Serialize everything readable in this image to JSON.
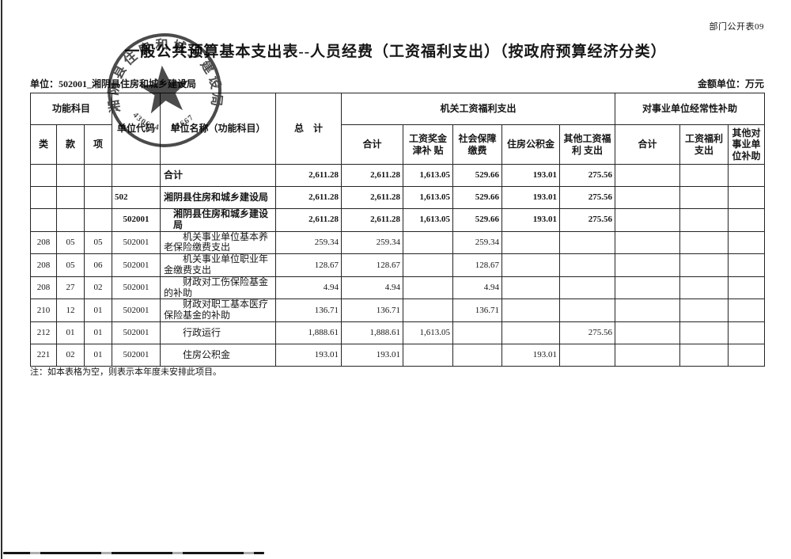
{
  "page": {
    "doc_label": "部门公开表09",
    "title": "一般公共预算基本支出表--人员经费（工资福利支出）（按政府预算经济分类）",
    "unit_line": "单位：502001_湘阴县住房和城乡建设局",
    "amount_unit": "金额单位：万元",
    "note": "注：如本表格为空，则表示本年度未安排此项目。"
  },
  "seal": {
    "ring_text": "湘阴县住房和城乡建设局",
    "code_text": "430624　 13667"
  },
  "table": {
    "header": {
      "func_group": "功能科目",
      "cls": "类",
      "sec": "款",
      "item": "项",
      "unit_code": "单位代码",
      "unit_name": "单位名称（功能科目）",
      "total": "总　计",
      "group1": "机关工资福利支出",
      "g1_cols": [
        "合计",
        "工资奖金津补\n贴",
        "社会保障缴费",
        "住房公积金",
        "其他工资福利\n支出"
      ],
      "group2": "对事业单位经常性补助",
      "g2_cols": [
        "合计",
        "工资福利支出",
        "其他对事业单\n位补助"
      ]
    },
    "rows": [
      {
        "cls": "",
        "sec": "",
        "item": "",
        "code": "",
        "name": "合计",
        "name_class": "lv1",
        "code_class": "",
        "bold": true,
        "total": "2,611.28",
        "g1": [
          "2,611.28",
          "1,613.05",
          "529.66",
          "193.01",
          "275.56"
        ],
        "g2": [
          "",
          "",
          ""
        ]
      },
      {
        "cls": "",
        "sec": "",
        "item": "",
        "code": "502",
        "name": "湘阴县住房和城乡建设局",
        "name_class": "lv1",
        "code_class": "left",
        "bold": true,
        "total": "2,611.28",
        "g1": [
          "2,611.28",
          "1,613.05",
          "529.66",
          "193.01",
          "275.56"
        ],
        "g2": [
          "",
          "",
          ""
        ]
      },
      {
        "cls": "",
        "sec": "",
        "item": "",
        "code": "502001",
        "name": "湘阴县住房和城乡建设局",
        "name_class": "lv2",
        "code_class": "",
        "bold": true,
        "total": "2,611.28",
        "g1": [
          "2,611.28",
          "1,613.05",
          "529.66",
          "193.01",
          "275.56"
        ],
        "g2": [
          "",
          "",
          ""
        ]
      },
      {
        "cls": "208",
        "sec": "05",
        "item": "05",
        "code": "502001",
        "name": "机关事业单位基本养老保险缴费支出",
        "name_class": "item",
        "code_class": "",
        "bold": false,
        "total": "259.34",
        "g1": [
          "259.34",
          "",
          "259.34",
          "",
          ""
        ],
        "g2": [
          "",
          "",
          ""
        ]
      },
      {
        "cls": "208",
        "sec": "05",
        "item": "06",
        "code": "502001",
        "name": "机关事业单位职业年金缴费支出",
        "name_class": "item",
        "code_class": "",
        "bold": false,
        "total": "128.67",
        "g1": [
          "128.67",
          "",
          "128.67",
          "",
          ""
        ],
        "g2": [
          "",
          "",
          ""
        ]
      },
      {
        "cls": "208",
        "sec": "27",
        "item": "02",
        "code": "502001",
        "name": "财政对工伤保险基金的补助",
        "name_class": "item",
        "code_class": "",
        "bold": false,
        "total": "4.94",
        "g1": [
          "4.94",
          "",
          "4.94",
          "",
          ""
        ],
        "g2": [
          "",
          "",
          ""
        ]
      },
      {
        "cls": "210",
        "sec": "12",
        "item": "01",
        "code": "502001",
        "name": "财政对职工基本医疗保险基金的补助",
        "name_class": "item",
        "code_class": "",
        "bold": false,
        "total": "136.71",
        "g1": [
          "136.71",
          "",
          "136.71",
          "",
          ""
        ],
        "g2": [
          "",
          "",
          ""
        ]
      },
      {
        "cls": "212",
        "sec": "01",
        "item": "01",
        "code": "502001",
        "name": "行政运行",
        "name_class": "item",
        "code_class": "",
        "bold": false,
        "total": "1,888.61",
        "g1": [
          "1,888.61",
          "1,613.05",
          "",
          "",
          "275.56"
        ],
        "g2": [
          "",
          "",
          ""
        ]
      },
      {
        "cls": "221",
        "sec": "02",
        "item": "01",
        "code": "502001",
        "name": "住房公积金",
        "name_class": "item",
        "code_class": "",
        "bold": false,
        "total": "193.01",
        "g1": [
          "193.01",
          "",
          "",
          "193.01",
          ""
        ],
        "g2": [
          "",
          "",
          ""
        ]
      }
    ]
  }
}
